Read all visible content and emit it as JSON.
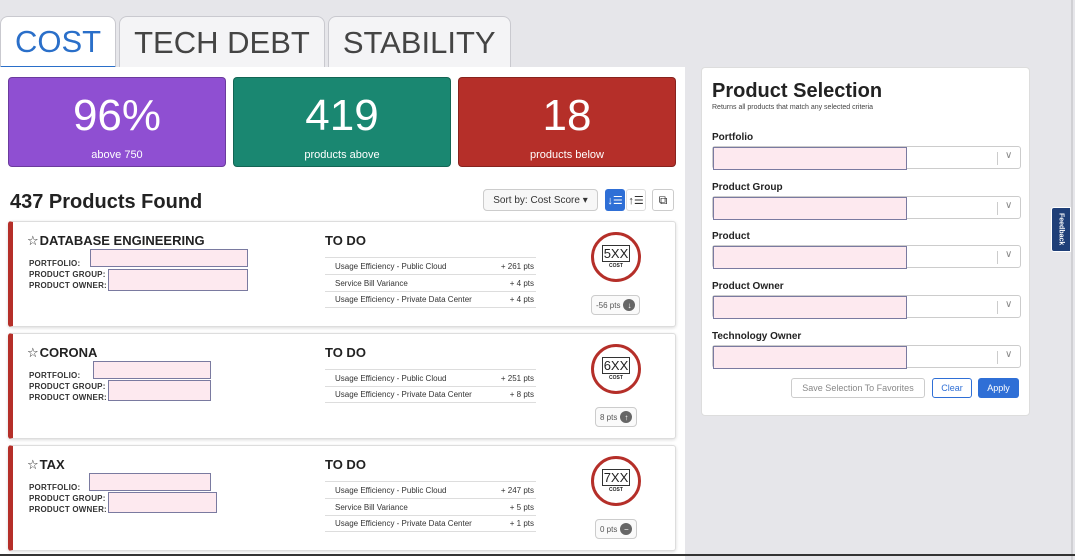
{
  "tabs": [
    {
      "label": "COST",
      "active": true
    },
    {
      "label": "TECH DEBT",
      "active": false
    },
    {
      "label": "STABILITY",
      "active": false
    }
  ],
  "kpis": [
    {
      "value": "96%",
      "label": "above 750",
      "color": "#8f4fd2"
    },
    {
      "value": "419",
      "label": "products above",
      "color": "#1a8771"
    },
    {
      "value": "18",
      "label": "products below",
      "color": "#b52f29"
    }
  ],
  "list": {
    "found": "437 Products Found",
    "sort_label": "Sort by: Cost Score ▾"
  },
  "meta_labels": {
    "portfolio": "PORTFOLIO:",
    "product_group": "PRODUCT GROUP:",
    "product_owner": "PRODUCT OWNER:"
  },
  "cards": [
    {
      "name": "DATABASE ENGINEERING",
      "todo_title": "TO DO",
      "todos": [
        {
          "label": "Usage Efficiency - Public Cloud",
          "pts": "+ 261 pts"
        },
        {
          "label": "Service Bill Variance",
          "pts": "+ 4 pts"
        },
        {
          "label": "Usage Efficiency - Private Data Center",
          "pts": "+ 4 pts"
        }
      ],
      "score": "5XX",
      "score_sub": "COST",
      "delta": "-56 pts",
      "delta_icon": "arrow-down-icon"
    },
    {
      "name": "CORONA",
      "todo_title": "TO DO",
      "todos": [
        {
          "label": "Usage Efficiency - Public Cloud",
          "pts": "+ 251 pts"
        },
        {
          "label": "Usage Efficiency - Private Data Center",
          "pts": "+ 8 pts"
        }
      ],
      "score": "6XX",
      "score_sub": "COST",
      "delta": "8 pts",
      "delta_icon": "arrow-up-icon"
    },
    {
      "name": "TAX",
      "todo_title": "TO DO",
      "todos": [
        {
          "label": "Usage Efficiency - Public Cloud",
          "pts": "+ 247 pts"
        },
        {
          "label": "Service Bill Variance",
          "pts": "+ 5 pts"
        },
        {
          "label": "Usage Efficiency - Private Data Center",
          "pts": "+ 1 pts"
        }
      ],
      "score": "7XX",
      "score_sub": "COST",
      "delta": "0 pts",
      "delta_icon": "minus-icon"
    }
  ],
  "selection": {
    "title": "Product Selection",
    "subtitle": "Returns all products that match any selected criteria",
    "fields": [
      "Portfolio",
      "Product Group",
      "Product",
      "Product Owner",
      "Technology Owner"
    ],
    "save_label": "Save Selection To Favorites",
    "clear_label": "Clear",
    "apply_label": "Apply"
  },
  "feedback_label": "Feedback"
}
